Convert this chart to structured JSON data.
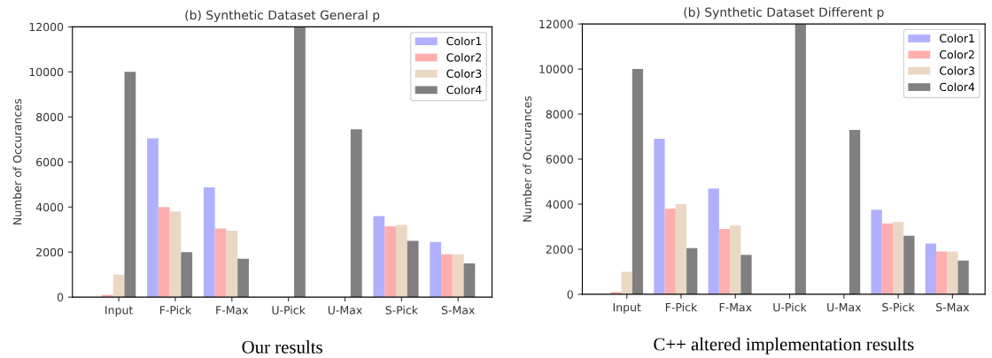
{
  "chart_data": [
    {
      "type": "bar",
      "title": "(b) Synthetic Dataset General p",
      "ylabel": "Number of Occurances",
      "categories": [
        "Input",
        "F-Pick",
        "F-Max",
        "U-Pick",
        "U-Max",
        "S-Pick",
        "S-Max"
      ],
      "ylim": [
        0,
        12000
      ],
      "yticks": [
        0,
        2000,
        4000,
        6000,
        8000,
        10000,
        12000
      ],
      "legend": "top right",
      "annotations": [
        "Our results"
      ],
      "series": [
        {
          "name": "Color1",
          "color": "#b0b0ff",
          "values": [
            0,
            7050,
            4870,
            0,
            0,
            3600,
            2450
          ]
        },
        {
          "name": "Color2",
          "color": "#ffaeae",
          "values": [
            100,
            4000,
            3050,
            0,
            0,
            3150,
            1900
          ]
        },
        {
          "name": "Color3",
          "color": "#ead8c5",
          "values": [
            1000,
            3800,
            2950,
            0,
            0,
            3200,
            1900
          ]
        },
        {
          "name": "Color4",
          "color": "#808080",
          "values": [
            10000,
            2000,
            1700,
            12000,
            7450,
            2500,
            1500
          ]
        }
      ]
    },
    {
      "type": "bar",
      "title": "(b) Synthetic Dataset Different p",
      "ylabel": "Number of Occurances",
      "categories": [
        "Input",
        "F-Pick",
        "F-Max",
        "U-Pick",
        "U-Max",
        "S-Pick",
        "S-Max"
      ],
      "ylim": [
        0,
        12000
      ],
      "yticks": [
        0,
        2000,
        4000,
        6000,
        8000,
        10000,
        12000
      ],
      "legend": "top right",
      "annotations": [
        "C++ altered implementation results"
      ],
      "series": [
        {
          "name": "Color1",
          "color": "#b0b0ff",
          "values": [
            0,
            6900,
            4700,
            0,
            0,
            3750,
            2250
          ]
        },
        {
          "name": "Color2",
          "color": "#ffaeae",
          "values": [
            100,
            3800,
            2900,
            0,
            0,
            3150,
            1900
          ]
        },
        {
          "name": "Color3",
          "color": "#ead8c5",
          "values": [
            1000,
            4000,
            3050,
            0,
            0,
            3200,
            1900
          ]
        },
        {
          "name": "Color4",
          "color": "#808080",
          "values": [
            10000,
            2050,
            1750,
            12000,
            7300,
            2600,
            1500
          ]
        }
      ]
    }
  ]
}
